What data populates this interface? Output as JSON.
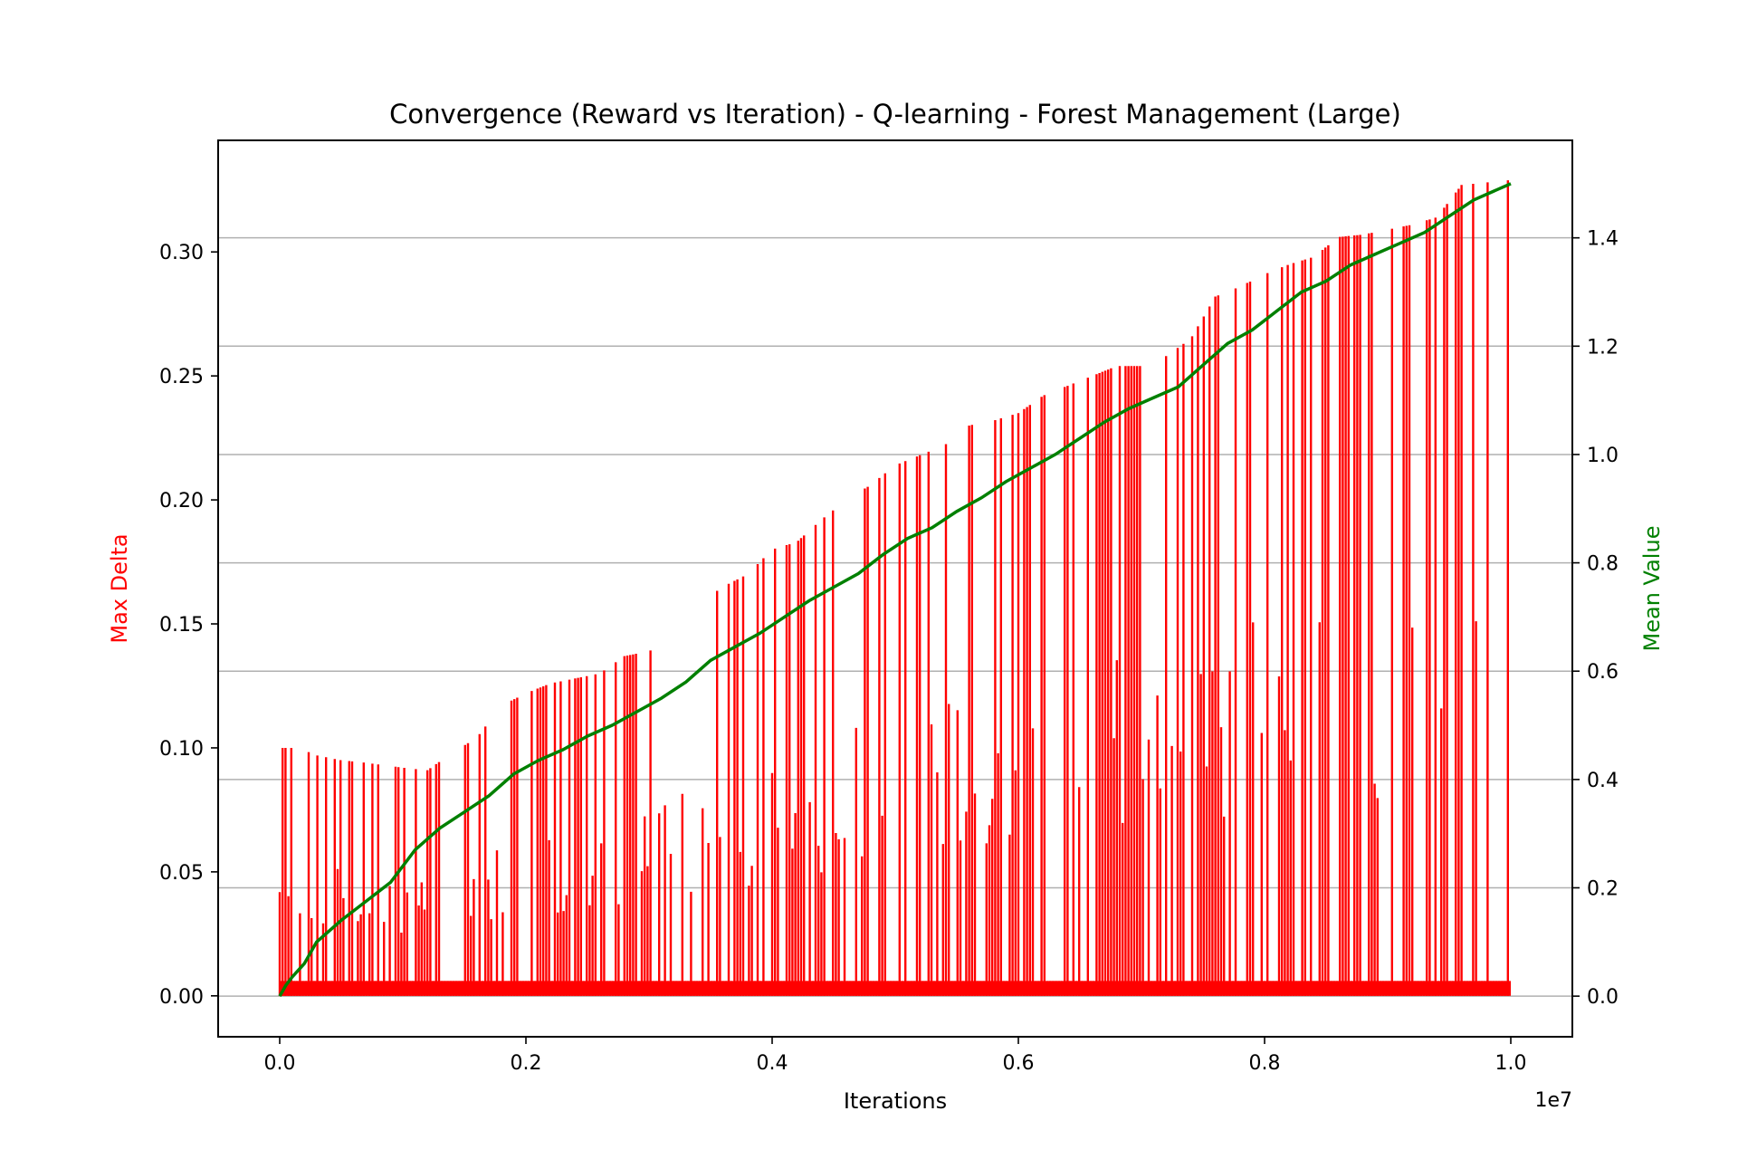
{
  "chart_data": {
    "type": "line",
    "title": "Convergence (Reward vs Iteration) - Q-learning - Forest Management (Large)",
    "xlabel": "Iterations",
    "x_offset_label": "1e7",
    "ylabel_left": "Max Delta",
    "ylabel_right": "Mean Value",
    "xlim": [
      -0.05,
      1.05
    ],
    "ylim_left": [
      -0.0165,
      0.345
    ],
    "ylim_right": [
      -0.075,
      1.58
    ],
    "x_ticks": [
      0.0,
      0.2,
      0.4,
      0.6,
      0.8,
      1.0
    ],
    "x_tick_labels": [
      "0.0",
      "0.2",
      "0.4",
      "0.6",
      "0.8",
      "1.0"
    ],
    "y_ticks_left": [
      0.0,
      0.05,
      0.1,
      0.15,
      0.2,
      0.25,
      0.3
    ],
    "y_tick_labels_left": [
      "0.00",
      "0.05",
      "0.10",
      "0.15",
      "0.20",
      "0.25",
      "0.30"
    ],
    "y_ticks_right": [
      0.0,
      0.2,
      0.4,
      0.6,
      0.8,
      1.0,
      1.2,
      1.4
    ],
    "y_tick_labels_right": [
      "0.0",
      "0.2",
      "0.4",
      "0.6",
      "0.8",
      "1.0",
      "1.2",
      "1.4"
    ],
    "grid": "horizontal lines at right-axis ticks",
    "colors": {
      "max_delta": "#ff0000",
      "mean_value": "#008000",
      "grid": "#b0b0b0",
      "axes": "#000000"
    },
    "series": [
      {
        "axis": "left",
        "x": [
          0.0,
          0.01,
          0.02,
          0.03,
          0.05,
          0.07,
          0.1,
          0.12,
          0.14,
          0.16,
          0.18,
          0.2,
          0.22,
          0.24,
          0.26,
          0.28,
          0.3,
          0.32,
          0.34,
          0.36,
          0.38,
          0.4,
          0.42,
          0.44,
          0.46,
          0.48,
          0.5,
          0.52,
          0.54,
          0.56,
          0.58,
          0.6,
          0.62,
          0.64,
          0.66,
          0.68,
          0.7,
          0.72,
          0.74,
          0.76,
          0.78,
          0.8,
          0.82,
          0.84,
          0.86,
          0.88,
          0.9,
          0.92,
          0.94,
          0.96,
          0.98,
          1.0
        ],
        "values": [
          0.1,
          0.1,
          0.099,
          0.097,
          0.095,
          0.094,
          0.092,
          0.091,
          0.098,
          0.104,
          0.117,
          0.122,
          0.126,
          0.128,
          0.13,
          0.137,
          0.139,
          0.144,
          0.158,
          0.165,
          0.17,
          0.18,
          0.183,
          0.192,
          0.2,
          0.206,
          0.214,
          0.218,
          0.222,
          0.23,
          0.232,
          0.235,
          0.242,
          0.246,
          0.25,
          0.254,
          0.254,
          0.258,
          0.265,
          0.282,
          0.286,
          0.291,
          0.295,
          0.298,
          0.306,
          0.307,
          0.309,
          0.311,
          0.314,
          0.327,
          0.328,
          0.329
        ]
      },
      {
        "axis": "right",
        "x": [
          0.0,
          0.005,
          0.01,
          0.02,
          0.03,
          0.05,
          0.07,
          0.09,
          0.11,
          0.13,
          0.15,
          0.17,
          0.19,
          0.21,
          0.23,
          0.25,
          0.27,
          0.29,
          0.31,
          0.33,
          0.35,
          0.37,
          0.39,
          0.41,
          0.43,
          0.45,
          0.47,
          0.49,
          0.51,
          0.53,
          0.55,
          0.57,
          0.59,
          0.61,
          0.63,
          0.65,
          0.67,
          0.69,
          0.71,
          0.73,
          0.75,
          0.77,
          0.79,
          0.81,
          0.83,
          0.85,
          0.87,
          0.89,
          0.91,
          0.93,
          0.95,
          0.97,
          0.99,
          1.0
        ],
        "values": [
          0.0,
          0.02,
          0.035,
          0.06,
          0.1,
          0.14,
          0.175,
          0.21,
          0.27,
          0.31,
          0.34,
          0.37,
          0.41,
          0.435,
          0.455,
          0.48,
          0.5,
          0.525,
          0.55,
          0.58,
          0.62,
          0.645,
          0.67,
          0.7,
          0.73,
          0.755,
          0.78,
          0.815,
          0.845,
          0.865,
          0.895,
          0.92,
          0.95,
          0.975,
          1.0,
          1.03,
          1.06,
          1.085,
          1.105,
          1.125,
          1.165,
          1.205,
          1.23,
          1.265,
          1.3,
          1.32,
          1.35,
          1.37,
          1.39,
          1.41,
          1.44,
          1.47,
          1.49,
          1.5
        ]
      }
    ]
  }
}
